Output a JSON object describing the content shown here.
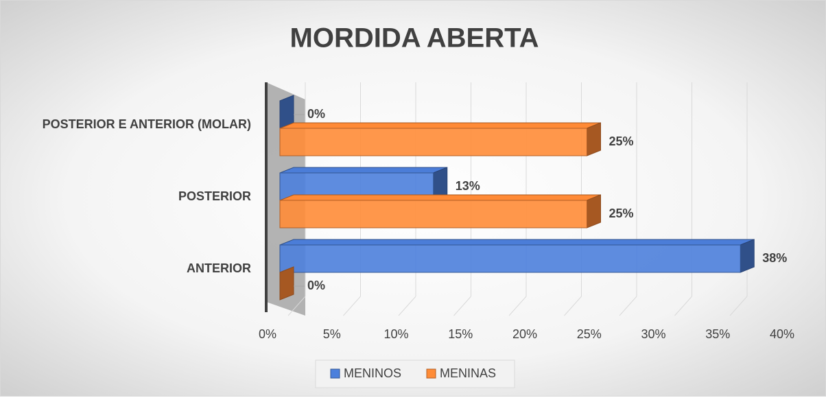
{
  "chart_data": {
    "type": "bar3d_horizontal",
    "title": "MORDIDA ABERTA",
    "categories": [
      "POSTERIOR E ANTERIOR (MOLAR)",
      "POSTERIOR",
      "ANTERIOR"
    ],
    "series": [
      {
        "name": "MENINOS",
        "color": "#4472c4",
        "values": [
          0,
          12.5,
          37.5
        ],
        "value_labels": [
          "0%",
          "13%",
          "38%"
        ]
      },
      {
        "name": "MENINAS",
        "color": "#ed7d31",
        "values": [
          25,
          25,
          0
        ],
        "value_labels": [
          "25%",
          "25%",
          "0%"
        ]
      }
    ],
    "xlim": [
      0,
      40
    ],
    "xticks": [
      {
        "value": 0,
        "label": "0%"
      },
      {
        "value": 5,
        "label": "5%"
      },
      {
        "value": 10,
        "label": "10%"
      },
      {
        "value": 15,
        "label": "15%"
      },
      {
        "value": 20,
        "label": "20%"
      },
      {
        "value": 25,
        "label": "25%"
      },
      {
        "value": 30,
        "label": "30%"
      },
      {
        "value": 35,
        "label": "35%"
      },
      {
        "value": 40,
        "label": "40%"
      }
    ],
    "grid": true,
    "legend": "bottom"
  }
}
